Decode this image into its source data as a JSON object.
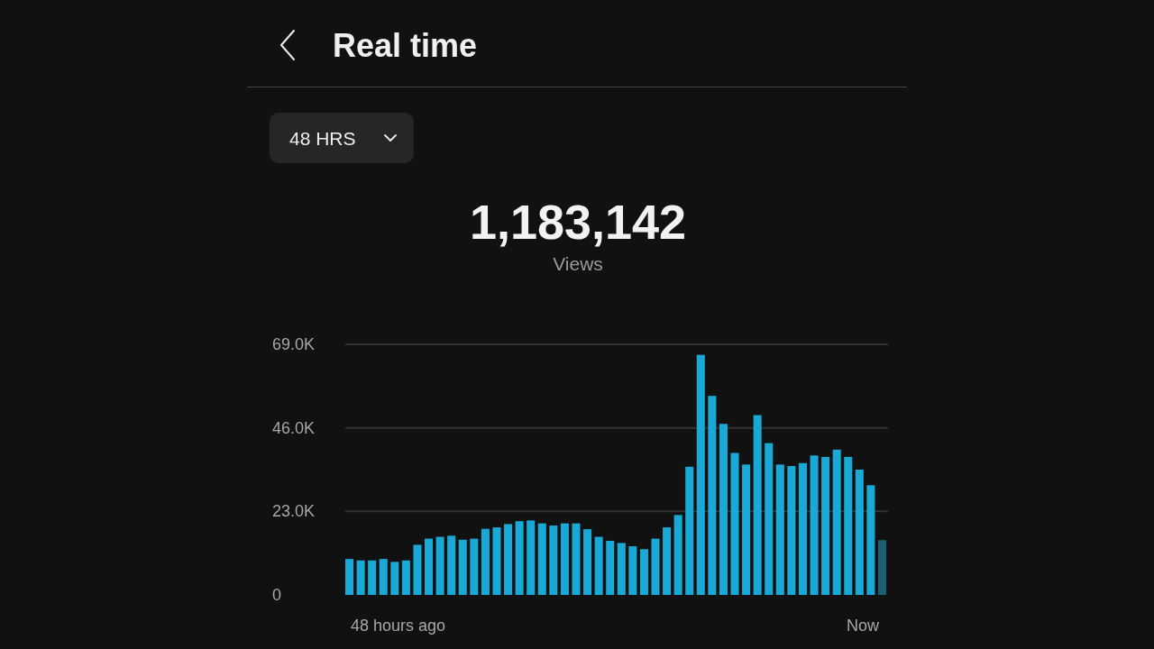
{
  "chart_data": {
    "type": "bar",
    "title": "Real time",
    "annotations": [
      "48 HRS",
      "1,183,142",
      "Views",
      "48 hours ago",
      "Now"
    ],
    "categories": [
      null,
      null,
      null,
      null,
      null,
      null,
      null,
      null,
      null,
      null,
      null,
      null,
      null,
      null,
      null,
      null,
      null,
      null,
      null,
      null,
      null,
      null,
      null,
      null,
      null,
      null,
      null,
      null,
      null,
      null,
      null,
      null,
      null,
      null,
      null,
      null,
      null,
      null,
      null,
      null,
      null,
      null,
      null,
      null,
      null,
      null,
      null,
      null
    ],
    "values": [
      9900,
      9500,
      9500,
      9900,
      9100,
      9500,
      13800,
      15500,
      16000,
      16300,
      15200,
      15500,
      18200,
      18600,
      19500,
      20300,
      20500,
      19700,
      19100,
      19700,
      19700,
      18100,
      16000,
      14900,
      14300,
      13400,
      12600,
      15500,
      18600,
      22000,
      35300,
      66100,
      54800,
      47100,
      39100,
      35900,
      49500,
      41800,
      35900,
      35500,
      36300,
      38400,
      38000,
      40000,
      38000,
      34500,
      30200,
      15100
    ],
    "colors": [
      "#1aa9d6",
      "#1aa9d6",
      "#1aa9d6",
      "#1aa9d6",
      "#1aa9d6",
      "#1aa9d6",
      "#1aa9d6",
      "#1aa9d6",
      "#1aa9d6",
      "#1aa9d6",
      "#1aa9d6",
      "#1aa9d6",
      "#1aa9d6",
      "#1aa9d6",
      "#1aa9d6",
      "#1aa9d6",
      "#1aa9d6",
      "#1aa9d6",
      "#1aa9d6",
      "#1aa9d6",
      "#1aa9d6",
      "#1aa9d6",
      "#1aa9d6",
      "#1aa9d6",
      "#1aa9d6",
      "#1aa9d6",
      "#1aa9d6",
      "#1aa9d6",
      "#1aa9d6",
      "#1aa9d6",
      "#1aa9d6",
      "#1aa9d6",
      "#1aa9d6",
      "#1aa9d6",
      "#1aa9d6",
      "#1aa9d6",
      "#1aa9d6",
      "#1aa9d6",
      "#1aa9d6",
      "#1aa9d6",
      "#1aa9d6",
      "#1aa9d6",
      "#1aa9d6",
      "#1aa9d6",
      "#1aa9d6",
      "#1aa9d6",
      "#1aa9d6",
      "#1d5f73"
    ],
    "ylim": [
      0,
      69000
    ],
    "yticks": [
      0,
      {
        "value": 23000,
        "label": "23.0K"
      },
      {
        "value": 46000,
        "label": "46.0K"
      },
      {
        "value": 69000,
        "label": "69.0K"
      }
    ],
    "grid": "y"
  }
}
